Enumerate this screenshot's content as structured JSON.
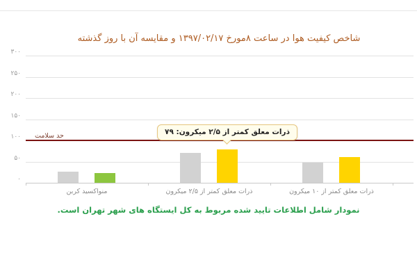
{
  "header": {
    "divider_color": "#e6e6e6"
  },
  "chart_data": {
    "type": "bar",
    "title": "شاخص کیفیت هوا در ساعت ۸مورخ ۱۳۹۷/۰۲/۱۷ و مقایسه آن با روز گذشته",
    "title_color": "#ad5b21",
    "categories": [
      "منواکسید کربن",
      "ذرات معلق کمتر از ۲/۵ میکرون",
      "ذرات معلق کمتر از ۱۰ میکرون"
    ],
    "series": [
      {
        "name": "gray-bars-previous-day",
        "values": [
          26,
          70,
          48
        ],
        "colors": [
          "#d2d2d2",
          "#d2d2d2",
          "#d2d2d2"
        ]
      },
      {
        "name": "colored-bars-current",
        "values": [
          23,
          79,
          60
        ],
        "colors": [
          "#8dc63f",
          "#ffd400",
          "#ffd400"
        ]
      }
    ],
    "ylim": [
      0,
      300
    ],
    "ytick_step": 50,
    "ytick_labels": {
      "0": "۰",
      "50": "۵۰",
      "100": "۱۰۰",
      "150": "۱۵۰",
      "200": "۲۰۰",
      "250": "۲۵۰",
      "300": "۳۰۰"
    },
    "grid": true,
    "legend": "none",
    "axis_label_color": "#999999",
    "xlabel_color": "#8a8a8a",
    "grid_color": "#e2e2e2",
    "baseline_color": "#c9c9c9",
    "health_limit": {
      "value": 100,
      "label": "حد سلامت",
      "line_color": "#7b1412",
      "label_color": "#7d4031"
    },
    "tooltip": {
      "text": "ذرات معلق کمتر از ۲/۵ میکرون: ۷۹",
      "value": 79,
      "category_index": 1,
      "bg": "#fffdec",
      "border": "#e6c57d",
      "text_color": "#222222"
    }
  },
  "footer": {
    "note": "نمودار شامل اطلاعات تایید شده مربوط به کل ایستگاه های شهر تهران است.",
    "note_color": "#2b9f4d"
  }
}
